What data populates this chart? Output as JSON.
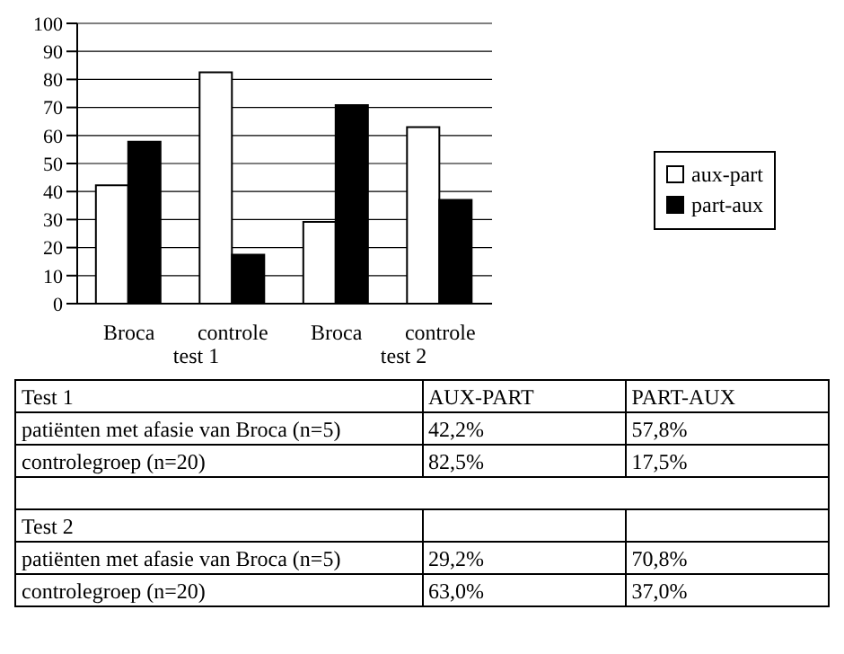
{
  "chart_data": {
    "type": "bar",
    "categories": [
      "Broca",
      "controle",
      "Broca",
      "controle"
    ],
    "series": [
      {
        "name": "aux-part",
        "color": "#ffffff",
        "values": [
          42.2,
          82.5,
          29.2,
          63.0
        ]
      },
      {
        "name": "part-aux",
        "color": "#000000",
        "values": [
          57.8,
          17.5,
          70.8,
          37.0
        ]
      }
    ],
    "ylim": [
      0,
      100
    ],
    "yticks": [
      0,
      10,
      20,
      30,
      40,
      50,
      60,
      70,
      80,
      90,
      100
    ],
    "grid": "y",
    "legend": "right",
    "annotations": [
      "test 1",
      "test 2",
      "Test 1",
      "AUX-PART",
      "PART-AUX",
      "patiënten met afasie van Broca (n=5)",
      "42,2%",
      "57,8%",
      "controlegroep (n=20)",
      "82,5%",
      "17,5%",
      "Test 2",
      "patiënten met afasie van Broca (n=5)",
      "29,2%",
      "70,8%",
      "controlegroep (n=20)",
      "63,0%",
      "37,0%"
    ]
  }
}
